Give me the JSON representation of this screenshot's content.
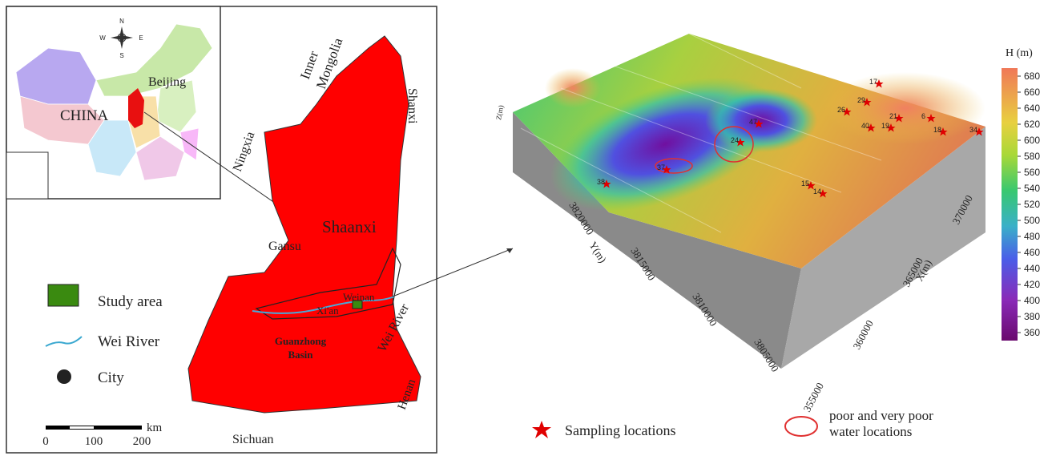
{
  "inset": {
    "compass": [
      "N",
      "S",
      "W",
      "E"
    ],
    "beijing": "Beijing",
    "china": "CHINA"
  },
  "map_labels": {
    "inner_mongolia": [
      "Inner",
      "Mongolia"
    ],
    "shanxi": "Shanxi",
    "ningxia": "Ningxia",
    "gansu": "Gansu",
    "shaanxi": "Shaanxi",
    "weinan": "Weinan",
    "xian": "Xi'an",
    "guanzhong": [
      "Guanzhong",
      "Basin"
    ],
    "wei_river": "Wei River",
    "henan": "Henan",
    "sichuan": "Sichuan"
  },
  "legend_left": [
    "Study area",
    "Wei River",
    "City"
  ],
  "scale_bar": {
    "unit": "km",
    "ticks": [
      0,
      100,
      200
    ]
  },
  "surface": {
    "x_label": "X(m)",
    "y_label": "Y(m)",
    "z_label": "Z(m)",
    "x_ticks": [
      355000,
      360000,
      365000,
      370000
    ],
    "y_ticks": [
      3805000,
      3810000,
      3815000,
      3820000
    ],
    "samples": [
      "37",
      "38",
      "15",
      "14",
      "24",
      "40",
      "19",
      "26",
      "21",
      "6",
      "18",
      "34",
      "29",
      "47",
      "17"
    ]
  },
  "colorbar": {
    "title": "H (m)",
    "ticks": [
      360,
      380,
      400,
      420,
      440,
      460,
      480,
      500,
      520,
      540,
      560,
      580,
      600,
      620,
      640,
      660,
      680
    ],
    "lim": [
      350,
      690
    ]
  },
  "legend_right": {
    "sampling": "Sampling locations",
    "poor": [
      "poor and very poor",
      "water locations"
    ]
  }
}
